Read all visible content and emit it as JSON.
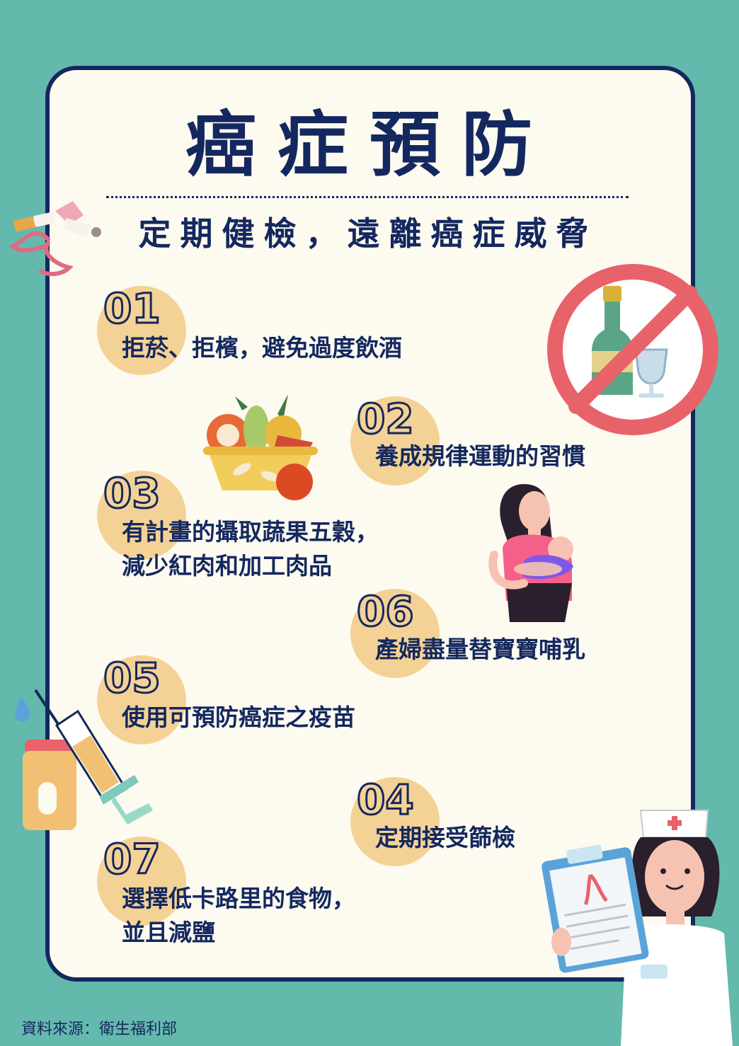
{
  "title": "癌症預防",
  "subtitle": "定期健檢，遠離癌症威脅",
  "items": [
    {
      "num": "01",
      "lines": [
        "拒菸、拒檳，避免過度飲酒"
      ]
    },
    {
      "num": "02",
      "lines": [
        "養成規律運動的習慣"
      ]
    },
    {
      "num": "03",
      "lines": [
        "有計畫的攝取蔬果五穀，",
        "減少紅肉和加工肉品"
      ]
    },
    {
      "num": "06",
      "lines": [
        "產婦盡量替寶寶哺乳"
      ]
    },
    {
      "num": "05",
      "lines": [
        "使用可預防癌症之疫苗"
      ]
    },
    {
      "num": "04",
      "lines": [
        "定期接受篩檢"
      ]
    },
    {
      "num": "07",
      "lines": [
        "選擇低卡路里的食物，",
        "並且減鹽"
      ]
    }
  ],
  "source": "資料來源：衛生福利部",
  "colors": {
    "background": "#64b9ad",
    "card": "#fdfaf0",
    "navy": "#14285f",
    "circle": "#f4d295",
    "no_sign_red": "#e8626a"
  },
  "icons": [
    "broken-cigarette-icon",
    "no-alcohol-icon",
    "fruit-basket-icon",
    "breastfeeding-mother-icon",
    "vaccine-syringe-icon",
    "nurse-clipboard-icon"
  ]
}
